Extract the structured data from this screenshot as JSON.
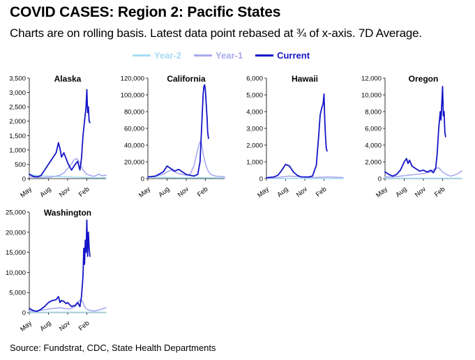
{
  "header": {
    "title": "COVID CASES: Region 2: Pacific States",
    "subtitle": "Charts are on rolling basis. Latest data point rebased at ¾ of x-axis. 7D Average."
  },
  "footer": {
    "source": "Source: Fundstrat, CDC, State Health Departments"
  },
  "legend": [
    {
      "name": "Year-2",
      "color": "#a6dcf4"
    },
    {
      "name": "Year-1",
      "color": "#a9a9ee"
    },
    {
      "name": "Current",
      "color": "#1414c8"
    }
  ],
  "chart_data": [
    {
      "type": "line",
      "title": "Alaska",
      "x_ticks": [
        "May",
        "Aug",
        "Nov",
        "Feb"
      ],
      "x_range": [
        0,
        100
      ],
      "x_tick_positions": [
        0,
        25,
        50,
        75
      ],
      "ylim": [
        0,
        3500
      ],
      "y_ticks": [
        0,
        500,
        1000,
        1500,
        2000,
        2500,
        3000,
        3500
      ],
      "y_tick_labels": [
        "0",
        "500",
        "1,000",
        "1,500",
        "2,000",
        "2,500",
        "3,000",
        "3,500"
      ],
      "series": [
        {
          "name": "Year-2",
          "x": [
            0,
            10,
            20,
            30,
            40,
            50,
            60,
            70,
            80,
            90,
            100
          ],
          "values": [
            150,
            110,
            90,
            80,
            70,
            60,
            50,
            40,
            30,
            30,
            30
          ]
        },
        {
          "name": "Year-1",
          "x": [
            0,
            10,
            20,
            30,
            40,
            45,
            50,
            55,
            58,
            62,
            66,
            70,
            75,
            80,
            85,
            90,
            95,
            100
          ],
          "values": [
            60,
            40,
            40,
            60,
            120,
            200,
            350,
            500,
            650,
            700,
            550,
            300,
            150,
            100,
            80,
            150,
            100,
            120
          ]
        },
        {
          "name": "Current",
          "x": [
            0,
            5,
            10,
            15,
            20,
            25,
            30,
            35,
            38,
            40,
            42,
            45,
            48,
            50,
            55,
            60,
            63,
            66,
            68,
            70,
            72,
            74,
            75,
            76,
            77,
            78,
            79
          ],
          "values": [
            150,
            80,
            60,
            100,
            300,
            500,
            700,
            900,
            1250,
            1050,
            750,
            900,
            700,
            550,
            300,
            500,
            600,
            300,
            700,
            1500,
            2000,
            2500,
            3100,
            2300,
            2500,
            2000,
            1950
          ]
        }
      ]
    },
    {
      "type": "line",
      "title": "California",
      "x_ticks": [
        "May",
        "Aug",
        "Nov",
        "Feb"
      ],
      "x_range": [
        0,
        100
      ],
      "x_tick_positions": [
        0,
        25,
        50,
        75
      ],
      "ylim": [
        0,
        120000
      ],
      "y_ticks": [
        0,
        20000,
        40000,
        60000,
        80000,
        100000,
        120000
      ],
      "y_tick_labels": [
        "0",
        "20,000",
        "40,000",
        "60,000",
        "80,000",
        "100,000",
        "120,000"
      ],
      "series": [
        {
          "name": "Year-2",
          "x": [
            0,
            20,
            40,
            60,
            80,
            100
          ],
          "values": [
            1500,
            1500,
            1000,
            1000,
            1000,
            800
          ]
        },
        {
          "name": "Year-1",
          "x": [
            0,
            10,
            20,
            25,
            30,
            40,
            50,
            55,
            60,
            65,
            68,
            70,
            72,
            75,
            78,
            82,
            88,
            95,
            100
          ],
          "values": [
            2000,
            3000,
            5000,
            8000,
            10000,
            6000,
            4000,
            5000,
            15000,
            35000,
            44000,
            42000,
            30000,
            18000,
            10000,
            5000,
            3000,
            2500,
            2000
          ]
        },
        {
          "name": "Current",
          "x": [
            0,
            10,
            20,
            25,
            30,
            35,
            40,
            45,
            50,
            55,
            60,
            65,
            68,
            70,
            72,
            73,
            74,
            75,
            76,
            77,
            78,
            79
          ],
          "values": [
            2000,
            3000,
            8000,
            15000,
            12000,
            9000,
            11000,
            8000,
            5000,
            4000,
            3000,
            5000,
            20000,
            60000,
            100000,
            110000,
            112000,
            105000,
            90000,
            75000,
            55000,
            48000
          ]
        }
      ]
    },
    {
      "type": "line",
      "title": "Hawaii",
      "x_ticks": [
        "May",
        "Aug",
        "Nov",
        "Feb"
      ],
      "x_range": [
        0,
        100
      ],
      "x_tick_positions": [
        0,
        25,
        50,
        75
      ],
      "ylim": [
        0,
        6000
      ],
      "y_ticks": [
        0,
        1000,
        2000,
        3000,
        4000,
        5000,
        6000
      ],
      "y_tick_labels": [
        "0",
        "1,000",
        "2,000",
        "3,000",
        "4,000",
        "5,000",
        "6,000"
      ],
      "series": [
        {
          "name": "Year-2",
          "x": [
            0,
            50,
            100
          ],
          "values": [
            10,
            10,
            10
          ]
        },
        {
          "name": "Year-1",
          "x": [
            0,
            10,
            20,
            30,
            40,
            50,
            60,
            70,
            80,
            90,
            100
          ],
          "values": [
            20,
            30,
            100,
            150,
            120,
            80,
            60,
            80,
            100,
            80,
            60
          ]
        },
        {
          "name": "Current",
          "x": [
            0,
            10,
            15,
            20,
            25,
            30,
            35,
            40,
            45,
            50,
            55,
            60,
            65,
            68,
            70,
            72,
            74,
            75,
            76,
            77,
            78,
            79
          ],
          "values": [
            50,
            100,
            200,
            500,
            850,
            750,
            400,
            200,
            100,
            100,
            100,
            150,
            800,
            2500,
            3800,
            4200,
            4500,
            5050,
            3500,
            2500,
            1800,
            1650
          ]
        }
      ]
    },
    {
      "type": "line",
      "title": "Oregon",
      "x_ticks": [
        "May",
        "Aug",
        "Nov",
        "Feb"
      ],
      "x_range": [
        0,
        100
      ],
      "x_tick_positions": [
        0,
        25,
        50,
        75
      ],
      "ylim": [
        0,
        12000
      ],
      "y_ticks": [
        0,
        2000,
        4000,
        6000,
        8000,
        10000,
        12000
      ],
      "y_tick_labels": [
        "0",
        "2,000",
        "4,000",
        "6,000",
        "8,000",
        "10,000",
        "12,000"
      ],
      "series": [
        {
          "name": "Year-2",
          "x": [
            0,
            50,
            100
          ],
          "values": [
            50,
            50,
            50
          ]
        },
        {
          "name": "Year-1",
          "x": [
            0,
            10,
            20,
            30,
            40,
            50,
            60,
            65,
            70,
            75,
            80,
            85,
            90,
            95,
            100
          ],
          "values": [
            200,
            200,
            300,
            400,
            500,
            600,
            800,
            1200,
            1300,
            800,
            500,
            300,
            400,
            600,
            900
          ]
        },
        {
          "name": "Current",
          "x": [
            0,
            5,
            10,
            15,
            20,
            25,
            28,
            30,
            32,
            35,
            40,
            45,
            50,
            55,
            60,
            63,
            66,
            68,
            70,
            72,
            73,
            74,
            75,
            76,
            77,
            78,
            79
          ],
          "values": [
            800,
            500,
            300,
            500,
            1000,
            2000,
            2400,
            1800,
            2200,
            1500,
            1200,
            900,
            1000,
            800,
            1000,
            700,
            1200,
            3000,
            6000,
            8000,
            7000,
            9000,
            11000,
            7500,
            8000,
            5500,
            5000
          ]
        }
      ]
    },
    {
      "type": "line",
      "title": "Washington",
      "x_ticks": [
        "May",
        "Aug",
        "Nov",
        "Feb"
      ],
      "x_range": [
        0,
        100
      ],
      "x_tick_positions": [
        0,
        25,
        50,
        75
      ],
      "ylim": [
        0,
        25000
      ],
      "y_ticks": [
        0,
        5000,
        10000,
        15000,
        20000,
        25000
      ],
      "y_tick_labels": [
        "0",
        "5,000",
        "10,000",
        "15,000",
        "20,000",
        "25,000"
      ],
      "series": [
        {
          "name": "Year-2",
          "x": [
            0,
            50,
            100
          ],
          "values": [
            100,
            100,
            100
          ]
        },
        {
          "name": "Year-1",
          "x": [
            0,
            10,
            20,
            30,
            40,
            50,
            55,
            60,
            65,
            68,
            70,
            72,
            75,
            80,
            85,
            90,
            95,
            100
          ],
          "values": [
            300,
            400,
            700,
            1000,
            1200,
            900,
            1000,
            1500,
            3000,
            3200,
            2500,
            1500,
            800,
            500,
            400,
            600,
            900,
            1200
          ]
        },
        {
          "name": "Current",
          "x": [
            0,
            5,
            10,
            15,
            20,
            25,
            30,
            35,
            38,
            40,
            42,
            45,
            48,
            50,
            55,
            60,
            63,
            66,
            68,
            70,
            71,
            72,
            73,
            74,
            75,
            76,
            77,
            78,
            79
          ],
          "values": [
            1000,
            500,
            300,
            800,
            1500,
            2500,
            3000,
            3200,
            4000,
            2500,
            3000,
            2800,
            2200,
            2500,
            1500,
            1800,
            2500,
            1500,
            4000,
            9000,
            16000,
            12000,
            18000,
            15000,
            23000,
            14000,
            20000,
            16000,
            14000
          ]
        }
      ]
    }
  ]
}
